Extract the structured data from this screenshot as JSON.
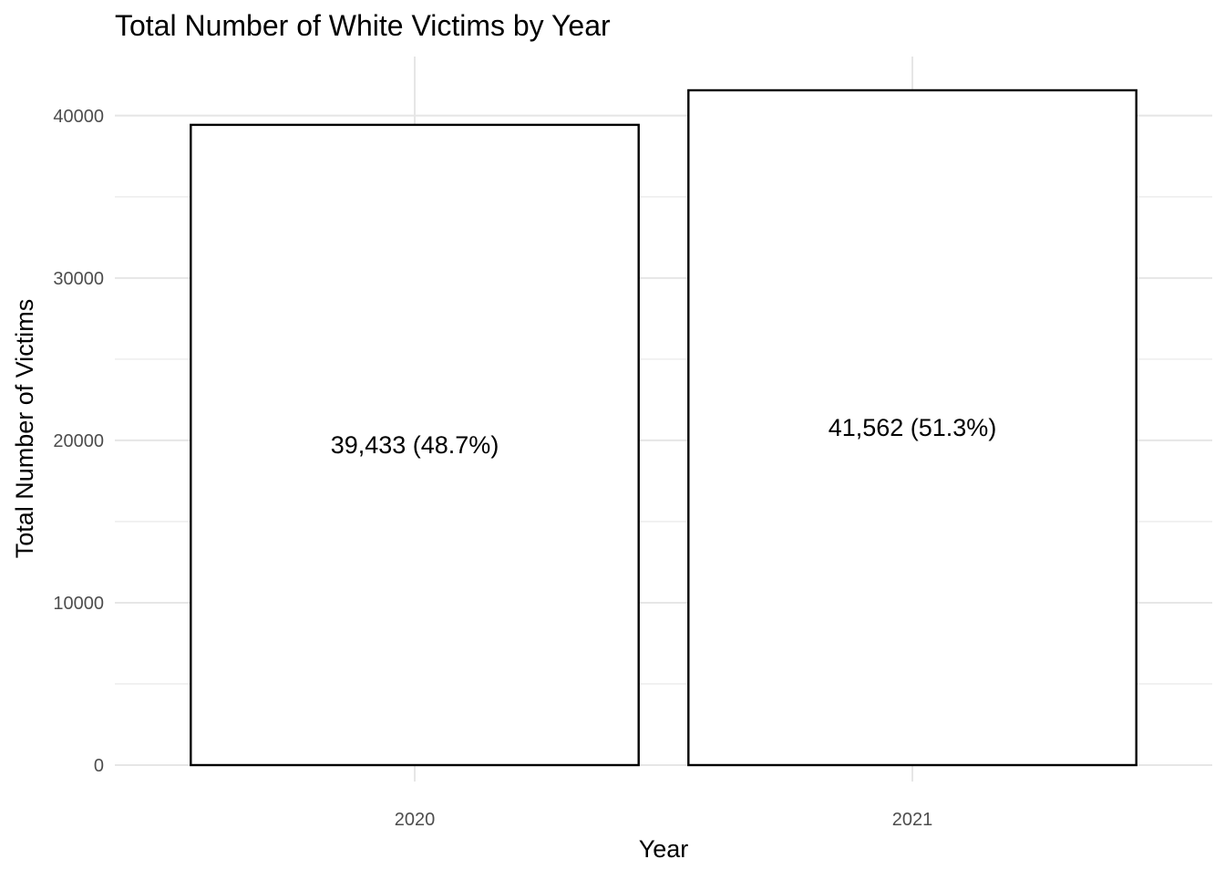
{
  "chart_data": {
    "type": "bar",
    "title": "Total Number of White Victims by Year",
    "xlabel": "Year",
    "ylabel": "Total Number of Victims",
    "categories": [
      "2020",
      "2021"
    ],
    "values": [
      39433,
      41562
    ],
    "data_labels": [
      "39,433 (48.7%)",
      "41,562 (51.3%)"
    ],
    "ylim": [
      0,
      41562
    ],
    "yticks": [
      0,
      10000,
      20000,
      30000,
      40000
    ],
    "ytick_labels": [
      "0",
      "10000",
      "20000",
      "30000",
      "40000"
    ],
    "grid": true,
    "legend": "none",
    "bar_fill": "#ffffff",
    "bar_outline": "#000000"
  }
}
